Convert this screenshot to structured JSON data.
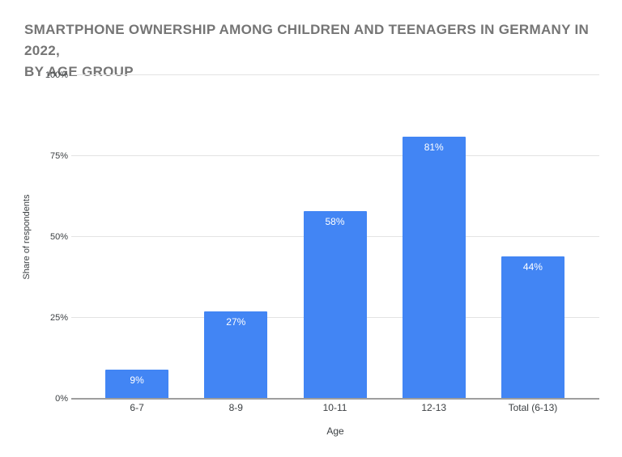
{
  "title": "SMARTPHONE OWNERSHIP AMONG CHILDREN AND TEENAGERS IN GERMANY IN 2022,\nBY AGE GROUP",
  "chart_data": {
    "type": "bar",
    "title": "Smartphone ownership among children and teenagers in Germany in 2022, by age group",
    "categories": [
      "6-7",
      "8-9",
      "10-11",
      "12-13",
      "Total (6-13)"
    ],
    "values": [
      9,
      27,
      58,
      81,
      44
    ],
    "value_labels": [
      "9%",
      "27%",
      "58%",
      "81%",
      "44%"
    ],
    "xlabel": "Age",
    "ylabel": "Share of respondents",
    "ylim": [
      0,
      100
    ],
    "yticks": [
      0,
      25,
      50,
      75,
      100
    ],
    "ytick_labels": [
      "0%",
      "25%",
      "50%",
      "75%",
      "100%"
    ],
    "grid": true,
    "legend": "none"
  },
  "colors": {
    "bar": "#4285f4",
    "title_text": "#757575",
    "axis_text": "#3c4043",
    "value_label_text": "#ffffff",
    "gridline": "#e3e3e3",
    "baseline": "#9e9e9e",
    "background": "#ffffff"
  }
}
